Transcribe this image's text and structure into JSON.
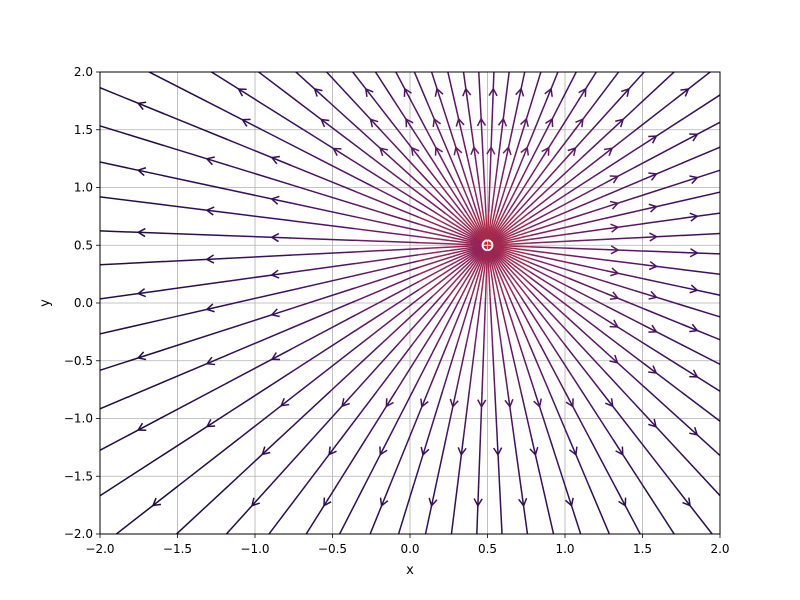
{
  "chart_data": {
    "type": "streamplot",
    "title": "",
    "xlabel": "x",
    "ylabel": "y",
    "xlim": [
      -2.0,
      2.0
    ],
    "ylim": [
      -2.0,
      2.0
    ],
    "xticks": [
      "−2.0",
      "−1.5",
      "−1.0",
      "−0.5",
      "0.0",
      "0.5",
      "1.0",
      "1.5",
      "2.0"
    ],
    "yticks": [
      "−2.0",
      "−1.5",
      "−1.0",
      "−0.5",
      "0.0",
      "0.5",
      "1.0",
      "1.5",
      "2.0"
    ],
    "grid": true,
    "field": "radial flow outward from a point source",
    "source": {
      "x": 0.5,
      "y": 0.5
    },
    "source_marker_color": "#d62728",
    "colormap": "inferno",
    "color_by": "speed (magnitude), highest near the source",
    "streamline_count": 72
  }
}
